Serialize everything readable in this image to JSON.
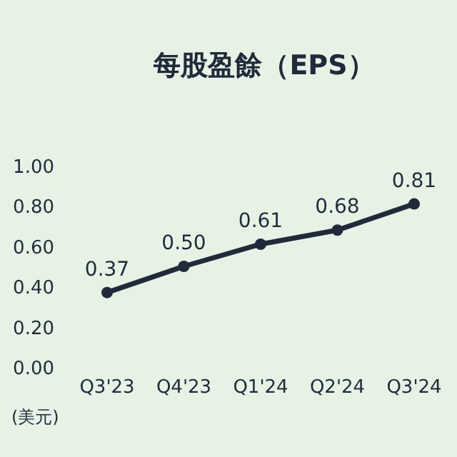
{
  "chart_data": {
    "type": "line",
    "title": "每股盈餘（EPS）",
    "categories": [
      "Q3'23",
      "Q4'23",
      "Q1'24",
      "Q2'24",
      "Q3'24"
    ],
    "values": [
      0.37,
      0.5,
      0.61,
      0.68,
      0.81
    ],
    "value_labels": [
      "0.37",
      "0.50",
      "0.61",
      "0.68",
      "0.81"
    ],
    "color": "#1f2b3a",
    "marker": "circle",
    "ylim": [
      0,
      1
    ],
    "yticks": [
      {
        "value": 0,
        "label": "0.00"
      },
      {
        "value": 0.2,
        "label": "0.20"
      },
      {
        "value": 0.4,
        "label": "0.40"
      },
      {
        "value": 0.6,
        "label": "0.60"
      },
      {
        "value": 0.8,
        "label": "0.80"
      },
      {
        "value": 1,
        "label": "1.00"
      }
    ],
    "annotations": [
      "(美元)"
    ]
  }
}
